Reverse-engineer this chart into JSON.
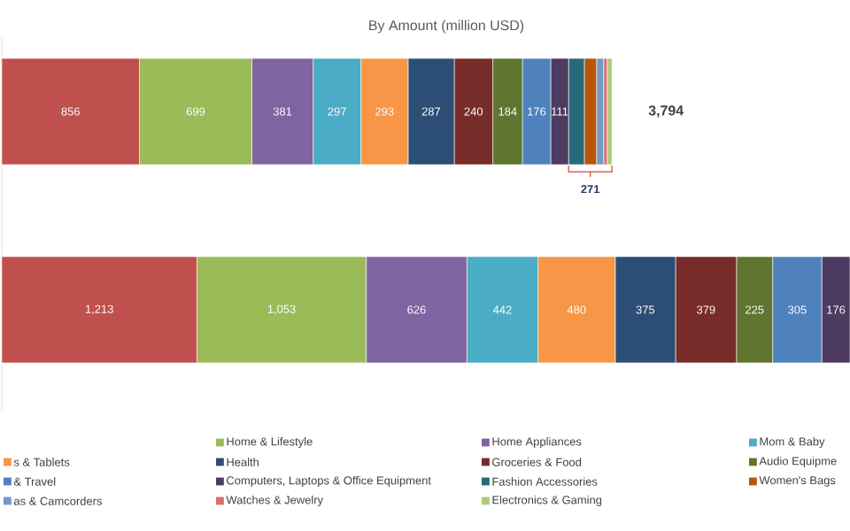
{
  "chart_data": {
    "type": "bar",
    "orientation": "horizontal",
    "stacked": true,
    "title": "By Amount (million USD)",
    "categories": [
      null,
      null
    ],
    "legend": "bottom",
    "series": [
      {
        "color": "#c0504d",
        "values": [
          856,
          1213
        ],
        "value_labels": [
          "856",
          "1,213"
        ]
      },
      {
        "name": "Home & Lifestyle",
        "color": "#9bbb59",
        "values": [
          699,
          1053
        ],
        "value_labels": [
          "699",
          "1,053"
        ]
      },
      {
        "name": "Home Appliances",
        "color": "#8064a2",
        "values": [
          381,
          626
        ],
        "value_labels": [
          "381",
          "626"
        ]
      },
      {
        "name": "Mom & Baby",
        "color": "#4bacc6",
        "values": [
          297,
          442
        ],
        "value_labels": [
          "297",
          "442"
        ]
      },
      {
        "name": "s & Tablets",
        "color": "#f79646",
        "values": [
          293,
          480
        ],
        "value_labels": [
          "293",
          "480"
        ]
      },
      {
        "name": "Health",
        "color": "#2c4d75",
        "values": [
          287,
          375
        ],
        "value_labels": [
          "287",
          "375"
        ]
      },
      {
        "name": "Groceries & Food",
        "color": "#772c2a",
        "values": [
          240,
          379
        ],
        "value_labels": [
          "240",
          "379"
        ]
      },
      {
        "name": "Audio Equipme",
        "color": "#5f7530",
        "values": [
          184,
          225
        ],
        "value_labels": [
          "184",
          "225"
        ]
      },
      {
        "name": "& Travel",
        "color": "#4f81bd",
        "values": [
          176,
          305
        ],
        "value_labels": [
          "176",
          "305"
        ]
      },
      {
        "name": "Computers, Laptops & Office Equipment",
        "color": "#4d3b62",
        "values": [
          111,
          176
        ],
        "value_labels": [
          "111",
          "176"
        ]
      },
      {
        "name": "Fashion Accessories",
        "color": "#276a7c",
        "values": [
          98,
          null
        ],
        "value_labels": [
          null,
          null
        ]
      },
      {
        "name": "Women's Bags",
        "color": "#b65708",
        "values": [
          76,
          null
        ],
        "value_labels": [
          null,
          null
        ]
      },
      {
        "name": "as & Camcorders",
        "color": "#729aca",
        "values": [
          44,
          null
        ],
        "value_labels": [
          null,
          null
        ]
      },
      {
        "name": "Watches & Jewelry",
        "color": "#d9706e",
        "values": [
          22,
          null
        ],
        "value_labels": [
          null,
          null
        ]
      },
      {
        "name": "Electronics & Gaming",
        "color": "#afc97a",
        "values": [
          30,
          null
        ],
        "value_labels": [
          null,
          null
        ]
      }
    ],
    "annotations": [
      {
        "text": "3,794",
        "x": 3794
      },
      "271"
    ]
  }
}
